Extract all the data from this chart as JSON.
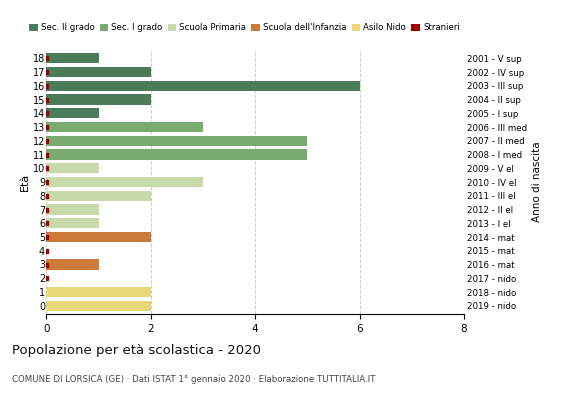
{
  "ages": [
    18,
    17,
    16,
    15,
    14,
    13,
    12,
    11,
    10,
    9,
    8,
    7,
    6,
    5,
    4,
    3,
    2,
    1,
    0
  ],
  "years": [
    "2001 - V sup",
    "2002 - IV sup",
    "2003 - III sup",
    "2004 - II sup",
    "2005 - I sup",
    "2006 - III med",
    "2007 - II med",
    "2008 - I med",
    "2009 - V el",
    "2010 - IV el",
    "2011 - III el",
    "2012 - II el",
    "2013 - I el",
    "2014 - mat",
    "2015 - mat",
    "2016 - mat",
    "2017 - nido",
    "2018 - nido",
    "2019 - nido"
  ],
  "values": [
    1,
    2,
    6,
    2,
    1,
    3,
    5,
    5,
    1,
    3,
    2,
    1,
    1,
    2,
    0,
    1,
    0,
    2,
    2
  ],
  "stranieri": [
    1,
    1,
    1,
    1,
    1,
    1,
    1,
    1,
    1,
    1,
    1,
    1,
    1,
    1,
    1,
    1,
    1,
    0,
    0
  ],
  "bar_colors": [
    "#4a7c59",
    "#4a7c59",
    "#4a7c59",
    "#4a7c59",
    "#4a7c59",
    "#7aab6e",
    "#7aab6e",
    "#7aab6e",
    "#c8d9aa",
    "#c8d9aa",
    "#c8d9aa",
    "#c8d9aa",
    "#c8d9aa",
    "#cc7a3a",
    "#cc7a3a",
    "#cc7a3a",
    "#e8d87a",
    "#e8d87a",
    "#e8d87a"
  ],
  "legend_colors": {
    "Sec. II grado": "#4a7c59",
    "Sec. I grado": "#7aab6e",
    "Scuola Primaria": "#c8d9aa",
    "Scuola dell'Infanzia": "#cc7a3a",
    "Asilo Nido": "#e8d87a",
    "Stranieri": "#a00000"
  },
  "title": "Popolazione per età scolastica - 2020",
  "subtitle": "COMUNE DI LORSICA (GE) · Dati ISTAT 1° gennaio 2020 · Elaborazione TUTTITALIA.IT",
  "xlim": [
    0,
    8
  ],
  "xticks": [
    0,
    2,
    4,
    6,
    8
  ],
  "bar_height": 0.75,
  "background_color": "#ffffff",
  "grid_color": "#cccccc"
}
